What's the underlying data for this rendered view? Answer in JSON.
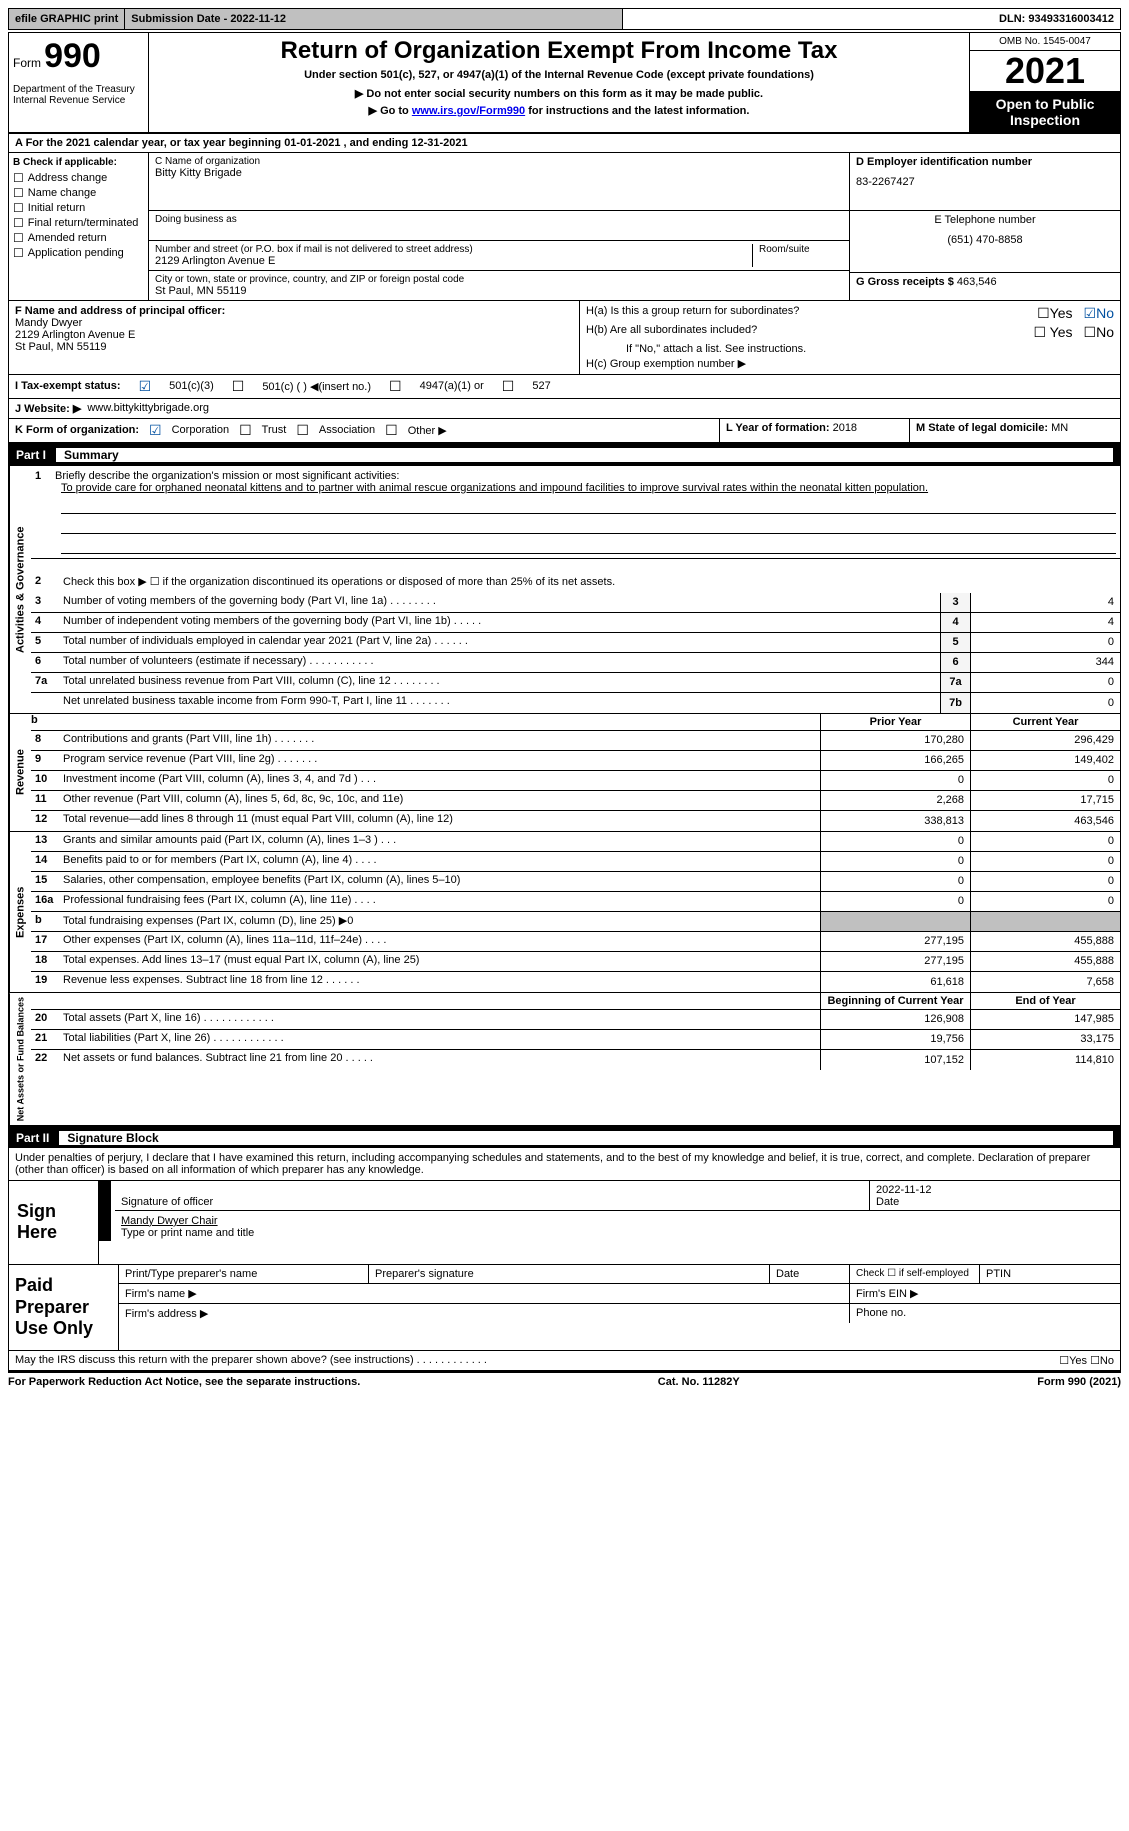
{
  "topbar": {
    "efile": "efile GRAPHIC print",
    "submission": "Submission Date - 2022-11-12",
    "dln": "DLN: 93493316003412"
  },
  "header": {
    "form_prefix": "Form",
    "form_number": "990",
    "title": "Return of Organization Exempt From Income Tax",
    "subtitle": "Under section 501(c), 527, or 4947(a)(1) of the Internal Revenue Code (except private foundations)",
    "line1": "▶ Do not enter social security numbers on this form as it may be made public.",
    "line2_prefix": "▶ Go to ",
    "line2_link": "www.irs.gov/Form990",
    "line2_suffix": " for instructions and the latest information.",
    "dept": "Department of the Treasury\nInternal Revenue Service",
    "omb": "OMB No. 1545-0047",
    "year": "2021",
    "inspection": "Open to Public Inspection"
  },
  "rowA": "A For the 2021 calendar year, or tax year beginning 01-01-2021   , and ending 12-31-2021",
  "boxB": {
    "label": "B Check if applicable:",
    "items": [
      "Address change",
      "Name change",
      "Initial return",
      "Final return/terminated",
      "Amended return",
      "Application pending"
    ]
  },
  "boxC": {
    "name_label": "C Name of organization",
    "name": "Bitty Kitty Brigade",
    "dba_label": "Doing business as",
    "street_label": "Number and street (or P.O. box if mail is not delivered to street address)",
    "room_label": "Room/suite",
    "street": "2129 Arlington Avenue E",
    "city_label": "City or town, state or province, country, and ZIP or foreign postal code",
    "city": "St Paul, MN  55119"
  },
  "boxD": {
    "ein_label": "D Employer identification number",
    "ein": "83-2267427",
    "phone_label": "E Telephone number",
    "phone": "(651) 470-8858",
    "gross_label": "G Gross receipts $",
    "gross": "463,546"
  },
  "boxF": {
    "label": "F Name and address of principal officer:",
    "name": "Mandy Dwyer",
    "street": "2129 Arlington Avenue E",
    "city": "St Paul, MN  55119"
  },
  "boxH": {
    "a_label": "H(a)  Is this a group return for subordinates?",
    "a_yes": "☐Yes",
    "a_no": "☑No",
    "b_label": "H(b)  Are all subordinates included?",
    "b_yes": "☐ Yes",
    "b_no": "☐No",
    "b_note": "If \"No,\" attach a list. See instructions.",
    "c_label": "H(c)  Group exemption number ▶"
  },
  "rowI": {
    "label": "I   Tax-exempt status:",
    "opt1": "501(c)(3)",
    "opt2": "501(c) (  ) ◀(insert no.)",
    "opt3": "4947(a)(1) or",
    "opt4": "527"
  },
  "rowJ": {
    "label": "J   Website: ▶",
    "value": "www.bittykittybrigade.org"
  },
  "rowK": {
    "label": "K Form of organization:",
    "opts": [
      "Corporation",
      "Trust",
      "Association",
      "Other ▶"
    ]
  },
  "rowL": {
    "label": "L Year of formation:",
    "value": "2018"
  },
  "rowM": {
    "label": "M State of legal domicile:",
    "value": "MN"
  },
  "partI": {
    "num": "Part I",
    "title": "Summary"
  },
  "mission": {
    "num": "1",
    "label": "Briefly describe the organization's mission or most significant activities:",
    "text": "To provide care for orphaned neonatal kittens and to partner with animal rescue organizations and impound facilities to improve survival rates within the neonatal kitten population."
  },
  "sideLabels": {
    "activities": "Activities & Governance",
    "revenue": "Revenue",
    "expenses": "Expenses",
    "netassets": "Net Assets or Fund Balances"
  },
  "line2": {
    "num": "2",
    "desc": "Check this box ▶ ☐  if the organization discontinued its operations or disposed of more than 25% of its net assets."
  },
  "lines": [
    {
      "num": "3",
      "desc": "Number of voting members of the governing body (Part VI, line 1a)  .    .    .    .    .    .    .    .",
      "box": "3",
      "val": "4"
    },
    {
      "num": "4",
      "desc": "Number of independent voting members of the governing body (Part VI, line 1b)    .    .    .    .    .",
      "box": "4",
      "val": "4"
    },
    {
      "num": "5",
      "desc": "Total number of individuals employed in calendar year 2021 (Part V, line 2a)  .    .    .    .    .    .",
      "box": "5",
      "val": "0"
    },
    {
      "num": "6",
      "desc": "Total number of volunteers (estimate if necessary)    .    .    .    .    .    .    .    .    .    .    .",
      "box": "6",
      "val": "344"
    },
    {
      "num": "7a",
      "desc": "Total unrelated business revenue from Part VIII, column (C), line 12  .    .    .    .    .    .    .    .",
      "box": "7a",
      "val": "0"
    },
    {
      "num": " ",
      "prefix": "b",
      "desc": "Net unrelated business taxable income from Form 990-T, Part I, line 11    .    .    .    .    .    .    .",
      "box": "7b",
      "val": "0"
    }
  ],
  "colHeaders": {
    "prior": "Prior Year",
    "current": "Current Year"
  },
  "revenue": [
    {
      "num": "8",
      "desc": "Contributions and grants (Part VIII, line 1h)    .    .    .    .    .    .    .",
      "prior": "170,280",
      "curr": "296,429"
    },
    {
      "num": "9",
      "desc": "Program service revenue (Part VIII, line 2g)   .    .    .    .    .    .    .",
      "prior": "166,265",
      "curr": "149,402"
    },
    {
      "num": "10",
      "desc": "Investment income (Part VIII, column (A), lines 3, 4, and 7d )    .    .    .",
      "prior": "0",
      "curr": "0"
    },
    {
      "num": "11",
      "desc": "Other revenue (Part VIII, column (A), lines 5, 6d, 8c, 9c, 10c, and 11e)",
      "prior": "2,268",
      "curr": "17,715"
    },
    {
      "num": "12",
      "desc": "Total revenue—add lines 8 through 11 (must equal Part VIII, column (A), line 12)",
      "prior": "338,813",
      "curr": "463,546"
    }
  ],
  "expenses": [
    {
      "num": "13",
      "desc": "Grants and similar amounts paid (Part IX, column (A), lines 1–3 )   .    .    .",
      "prior": "0",
      "curr": "0"
    },
    {
      "num": "14",
      "desc": "Benefits paid to or for members (Part IX, column (A), line 4)   .    .    .    .",
      "prior": "0",
      "curr": "0"
    },
    {
      "num": "15",
      "desc": "Salaries, other compensation, employee benefits (Part IX, column (A), lines 5–10)",
      "prior": "0",
      "curr": "0"
    },
    {
      "num": "16a",
      "desc": "Professional fundraising fees (Part IX, column (A), line 11e)  .    .    .    .",
      "prior": "0",
      "curr": "0"
    },
    {
      "num": "b",
      "desc": "Total fundraising expenses (Part IX, column (D), line 25) ▶0",
      "prior": "",
      "curr": "",
      "shaded": true
    },
    {
      "num": "17",
      "desc": "Other expenses (Part IX, column (A), lines 11a–11d, 11f–24e)   .    .    .    .",
      "prior": "277,195",
      "curr": "455,888"
    },
    {
      "num": "18",
      "desc": "Total expenses. Add lines 13–17 (must equal Part IX, column (A), line 25)",
      "prior": "277,195",
      "curr": "455,888"
    },
    {
      "num": "19",
      "desc": "Revenue less expenses. Subtract line 18 from line 12   .    .    .    .    .    .",
      "prior": "61,618",
      "curr": "7,658"
    }
  ],
  "netHeaders": {
    "begin": "Beginning of Current Year",
    "end": "End of Year"
  },
  "netassets": [
    {
      "num": "20",
      "desc": "Total assets (Part X, line 16)   .    .    .    .    .    .    .    .    .    .    .    .",
      "prior": "126,908",
      "curr": "147,985"
    },
    {
      "num": "21",
      "desc": "Total liabilities (Part X, line 26)   .    .    .    .    .    .    .    .    .    .    .    .",
      "prior": "19,756",
      "curr": "33,175"
    },
    {
      "num": "22",
      "desc": "Net assets or fund balances. Subtract line 21 from line 20  .    .    .    .    .",
      "prior": "107,152",
      "curr": "114,810"
    }
  ],
  "partII": {
    "num": "Part II",
    "title": "Signature Block"
  },
  "signature": {
    "penalty": "Under penalties of perjury, I declare that I have examined this return, including accompanying schedules and statements, and to the best of my knowledge and belief, it is true, correct, and complete. Declaration of preparer (other than officer) is based on all information of which preparer has any knowledge.",
    "sign_here": "Sign Here",
    "sig_officer": "Signature of officer",
    "date": "2022-11-12",
    "date_label": "Date",
    "name": "Mandy Dwyer  Chair",
    "name_label": "Type or print name and title"
  },
  "paid": {
    "label": "Paid Preparer Use Only",
    "headers": [
      "Print/Type preparer's name",
      "Preparer's signature",
      "Date",
      "Check ☐  if self-employed",
      "PTIN"
    ],
    "firm_name": "Firm's name   ▶",
    "firm_ein": "Firm's EIN ▶",
    "firm_addr": "Firm's address ▶",
    "phone": "Phone no."
  },
  "discuss": "May the IRS discuss this return with the preparer shown above? (see instructions)    .    .    .    .    .    .    .    .    .    .    .    .",
  "discuss_yn": "☐Yes   ☐No",
  "footer": {
    "left": "For Paperwork Reduction Act Notice, see the separate instructions.",
    "mid": "Cat. No. 11282Y",
    "right": "Form 990 (2021)"
  }
}
